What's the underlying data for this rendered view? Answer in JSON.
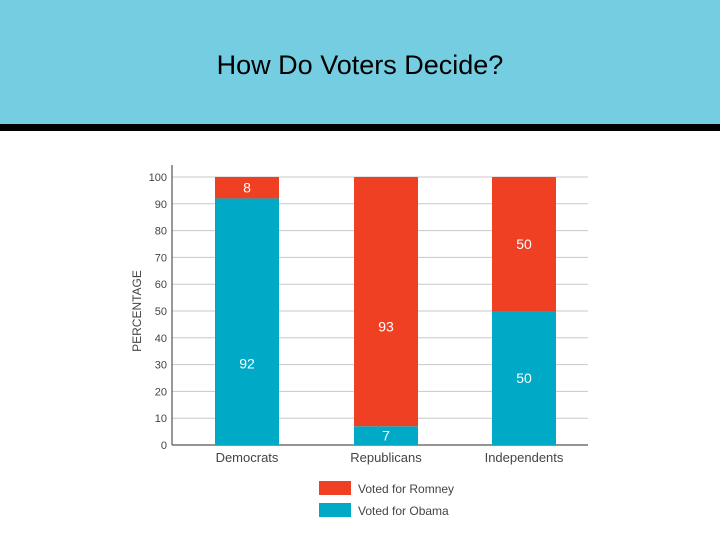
{
  "slide": {
    "title": "How Do Voters Decide?"
  },
  "colors": {
    "header_bg": "#74cde0",
    "romney": "#ef4023",
    "obama": "#00a9c5",
    "grid": "#c8c8c8",
    "axis": "#555555",
    "label_on_bar": "#ffffff",
    "text": "#444444"
  },
  "chart_data": {
    "type": "bar",
    "stacked": true,
    "categories": [
      "Democrats",
      "Republicans",
      "Independents"
    ],
    "series": [
      {
        "name": "Voted for Obama",
        "values": [
          92,
          7,
          50
        ],
        "color": "#00a9c5"
      },
      {
        "name": "Voted for Romney",
        "values": [
          8,
          93,
          50
        ],
        "color": "#ef4023"
      }
    ],
    "ylabel": "PERCENTAGE",
    "xlabel": "",
    "ylim": [
      0,
      100
    ],
    "yticks": [
      0,
      10,
      20,
      30,
      40,
      50,
      60,
      70,
      80,
      90,
      100
    ],
    "grid": true,
    "legend_position": "bottom",
    "legend_order": [
      "Voted for Romney",
      "Voted for Obama"
    ]
  }
}
